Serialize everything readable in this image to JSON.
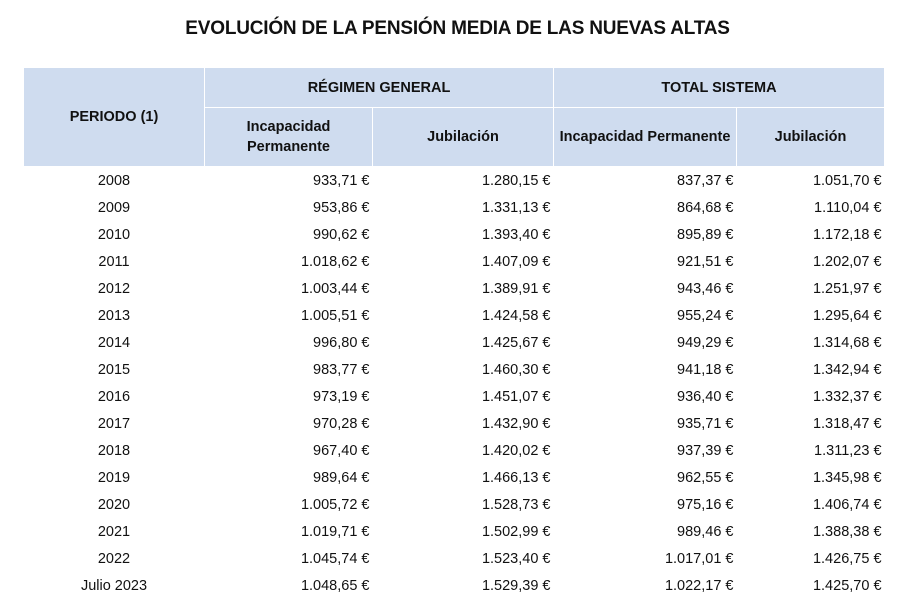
{
  "title": "EVOLUCIÓN DE LA PENSIÓN MEDIA DE LAS NUEVAS ALTAS",
  "header": {
    "period": "PERIODO (1)",
    "groups": [
      {
        "label": "RÉGIMEN GENERAL",
        "sub": [
          "Incapacidad Permanente",
          "Jubilación"
        ]
      },
      {
        "label": "TOTAL SISTEMA",
        "sub": [
          "Incapacidad Permanente",
          "Jubilación"
        ]
      }
    ]
  },
  "rows": [
    {
      "period": "2008",
      "rg_ip": "933,71 €",
      "rg_jub": "1.280,15 €",
      "ts_ip": "837,37 €",
      "ts_jub": "1.051,70 €"
    },
    {
      "period": "2009",
      "rg_ip": "953,86 €",
      "rg_jub": "1.331,13 €",
      "ts_ip": "864,68 €",
      "ts_jub": "1.110,04 €"
    },
    {
      "period": "2010",
      "rg_ip": "990,62 €",
      "rg_jub": "1.393,40 €",
      "ts_ip": "895,89 €",
      "ts_jub": "1.172,18 €"
    },
    {
      "period": "2011",
      "rg_ip": "1.018,62 €",
      "rg_jub": "1.407,09 €",
      "ts_ip": "921,51 €",
      "ts_jub": "1.202,07 €"
    },
    {
      "period": "2012",
      "rg_ip": "1.003,44 €",
      "rg_jub": "1.389,91 €",
      "ts_ip": "943,46 €",
      "ts_jub": "1.251,97 €"
    },
    {
      "period": "2013",
      "rg_ip": "1.005,51 €",
      "rg_jub": "1.424,58 €",
      "ts_ip": "955,24 €",
      "ts_jub": "1.295,64 €"
    },
    {
      "period": "2014",
      "rg_ip": "996,80 €",
      "rg_jub": "1.425,67 €",
      "ts_ip": "949,29 €",
      "ts_jub": "1.314,68 €"
    },
    {
      "period": "2015",
      "rg_ip": "983,77 €",
      "rg_jub": "1.460,30 €",
      "ts_ip": "941,18 €",
      "ts_jub": "1.342,94 €"
    },
    {
      "period": "2016",
      "rg_ip": "973,19 €",
      "rg_jub": "1.451,07 €",
      "ts_ip": "936,40 €",
      "ts_jub": "1.332,37 €"
    },
    {
      "period": "2017",
      "rg_ip": "970,28 €",
      "rg_jub": "1.432,90 €",
      "ts_ip": "935,71 €",
      "ts_jub": "1.318,47 €"
    },
    {
      "period": "2018",
      "rg_ip": "967,40 €",
      "rg_jub": "1.420,02 €",
      "ts_ip": "937,39 €",
      "ts_jub": "1.311,23 €"
    },
    {
      "period": "2019",
      "rg_ip": "989,64 €",
      "rg_jub": "1.466,13 €",
      "ts_ip": "962,55 €",
      "ts_jub": "1.345,98 €"
    },
    {
      "period": "2020",
      "rg_ip": "1.005,72 €",
      "rg_jub": "1.528,73 €",
      "ts_ip": "975,16 €",
      "ts_jub": "1.406,74 €"
    },
    {
      "period": "2021",
      "rg_ip": "1.019,71 €",
      "rg_jub": "1.502,99 €",
      "ts_ip": "989,46 €",
      "ts_jub": "1.388,38 €"
    },
    {
      "period": "2022",
      "rg_ip": "1.045,74 €",
      "rg_jub": "1.523,40 €",
      "ts_ip": "1.017,01 €",
      "ts_jub": "1.426,75 €"
    },
    {
      "period": "Julio 2023",
      "rg_ip": "1.048,65 €",
      "rg_jub": "1.529,39 €",
      "ts_ip": "1.022,17 €",
      "ts_jub": "1.425,70 €"
    }
  ],
  "colors": {
    "header_bg": "#cfdcef"
  }
}
